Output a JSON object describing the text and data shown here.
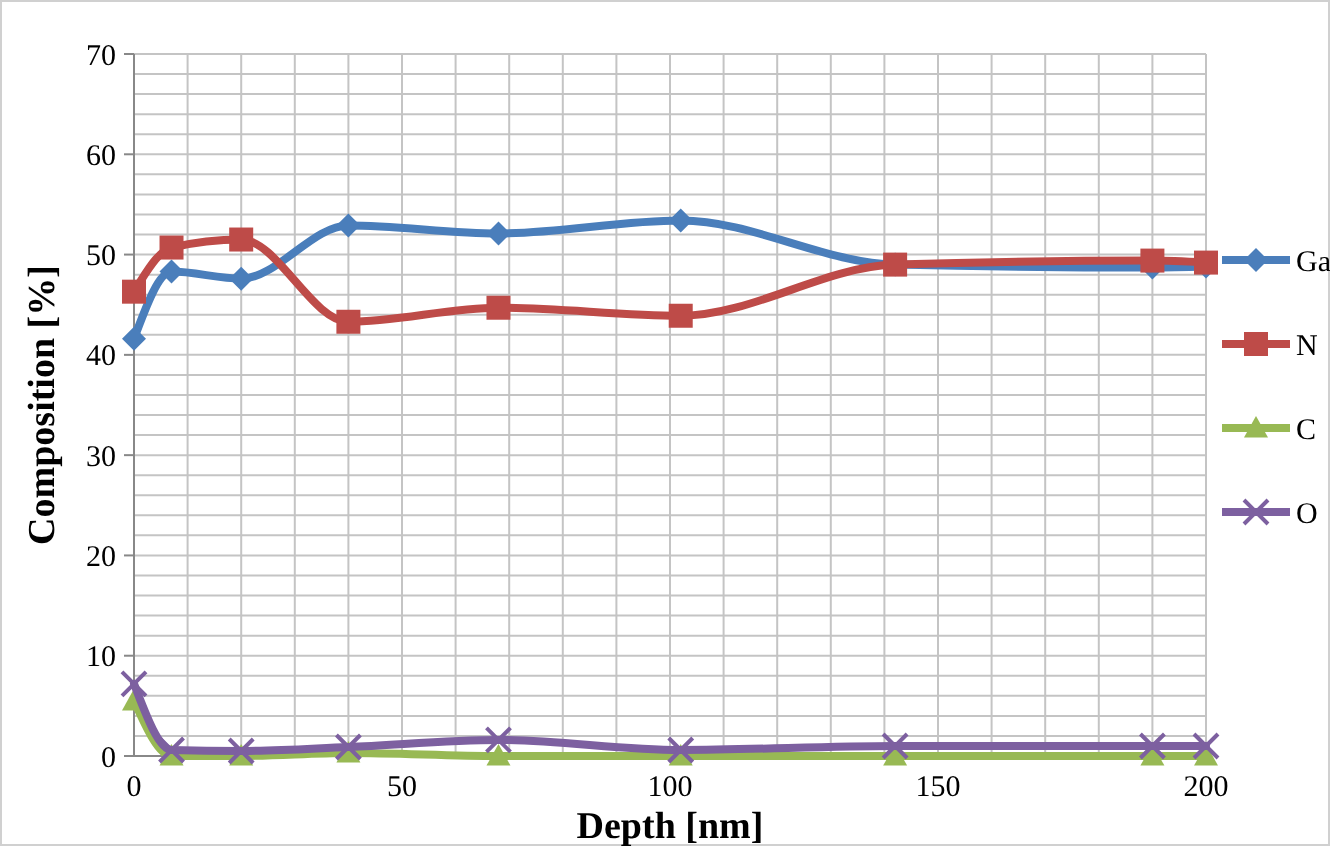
{
  "chart_data": {
    "type": "line",
    "xlabel": "Depth [nm]",
    "ylabel": "Composition [%]",
    "x": [
      0,
      7,
      20,
      40,
      68,
      102,
      142,
      190,
      200
    ],
    "series": [
      {
        "name": "Ga",
        "color": "#4a7ebb",
        "marker": "diamond",
        "values": [
          41.6,
          48.3,
          47.6,
          52.9,
          52.1,
          53.4,
          49,
          48.7,
          48.8
        ]
      },
      {
        "name": "N",
        "color": "#be4b48",
        "marker": "square",
        "values": [
          46.3,
          50.7,
          51.5,
          43.3,
          44.7,
          43.9,
          49,
          49.4,
          49.2
        ]
      },
      {
        "name": "C",
        "color": "#98b954",
        "marker": "triangle",
        "values": [
          5.5,
          0,
          0,
          0.3,
          0,
          0,
          0,
          0,
          0
        ]
      },
      {
        "name": "O",
        "color": "#7d60a0",
        "marker": "cross",
        "values": [
          7.2,
          0.6,
          0.5,
          0.9,
          1.6,
          0.6,
          1,
          1,
          1
        ]
      }
    ],
    "xlim": [
      0,
      200
    ],
    "ylim": [
      0,
      70
    ],
    "xticks": [
      0,
      {
        "value": 10,
        "label": null
      },
      {
        "value": 20,
        "label": null
      },
      {
        "value": 30,
        "label": null
      },
      {
        "value": 40,
        "label": null
      },
      50,
      {
        "value": 60,
        "label": null
      },
      {
        "value": 70,
        "label": null
      },
      {
        "value": 80,
        "label": null
      },
      {
        "value": 90,
        "label": null
      },
      100,
      {
        "value": 110,
        "label": null
      },
      {
        "value": 120,
        "label": null
      },
      {
        "value": 130,
        "label": null
      },
      {
        "value": 140,
        "label": null
      },
      150,
      {
        "value": 160,
        "label": null
      },
      {
        "value": 170,
        "label": null
      },
      {
        "value": 180,
        "label": null
      },
      {
        "value": 190,
        "label": null
      },
      200
    ],
    "yticks": [
      0,
      {
        "value": 2,
        "label": null
      },
      {
        "value": 4,
        "label": null
      },
      {
        "value": 6,
        "label": null
      },
      {
        "value": 8,
        "label": null
      },
      10,
      {
        "value": 12,
        "label": null
      },
      {
        "value": 14,
        "label": null
      },
      {
        "value": 16,
        "label": null
      },
      {
        "value": 18,
        "label": null
      },
      20,
      {
        "value": 22,
        "label": null
      },
      {
        "value": 24,
        "label": null
      },
      {
        "value": 26,
        "label": null
      },
      {
        "value": 28,
        "label": null
      },
      30,
      {
        "value": 32,
        "label": null
      },
      {
        "value": 34,
        "label": null
      },
      {
        "value": 36,
        "label": null
      },
      {
        "value": 38,
        "label": null
      },
      40,
      {
        "value": 42,
        "label": null
      },
      {
        "value": 44,
        "label": null
      },
      {
        "value": 46,
        "label": null
      },
      {
        "value": 48,
        "label": null
      },
      50,
      {
        "value": 52,
        "label": null
      },
      {
        "value": 54,
        "label": null
      },
      {
        "value": 56,
        "label": null
      },
      {
        "value": 58,
        "label": null
      },
      60,
      {
        "value": 62,
        "label": null
      },
      {
        "value": 64,
        "label": null
      },
      {
        "value": 66,
        "label": null
      },
      {
        "value": 68,
        "label": null
      },
      70
    ],
    "grid": true,
    "legend": "right"
  }
}
